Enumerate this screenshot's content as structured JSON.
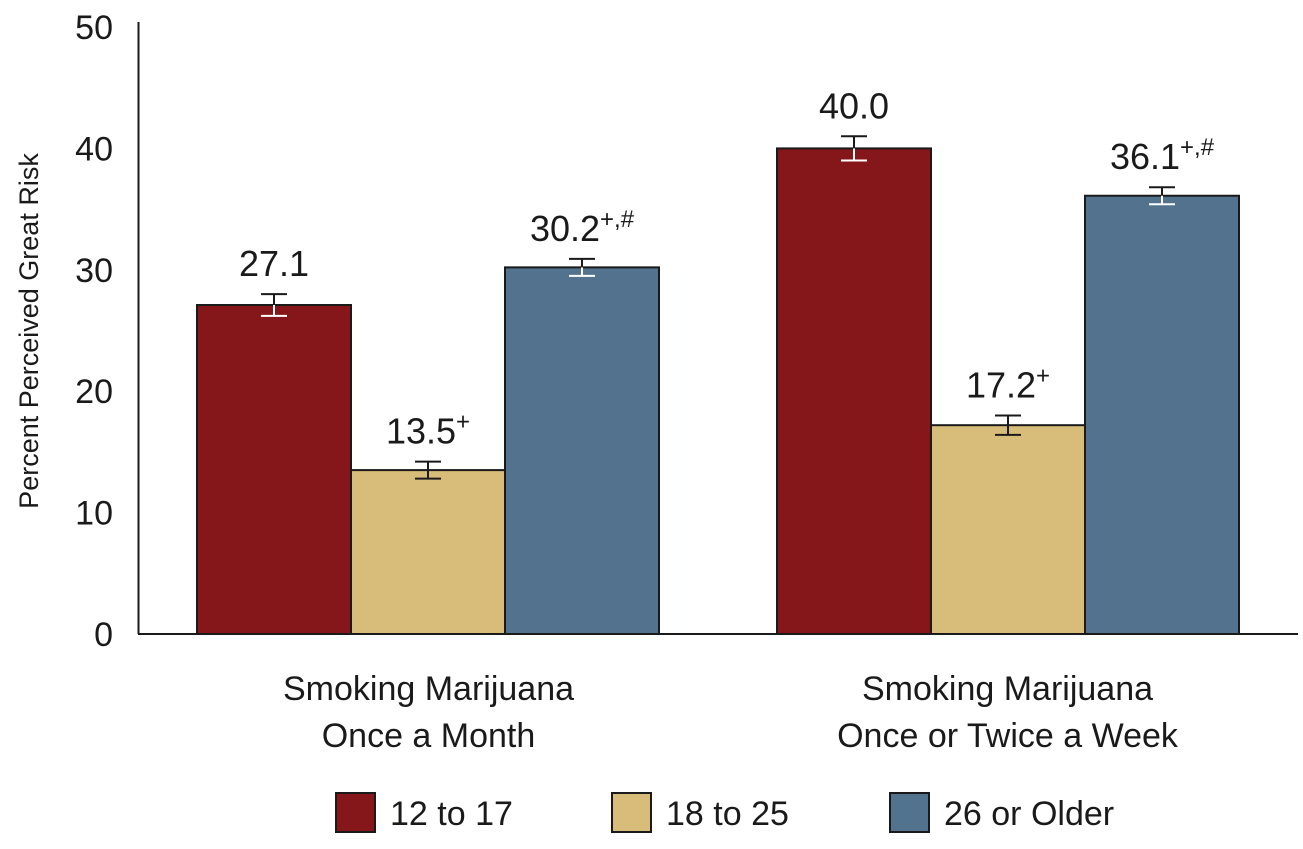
{
  "chart_data": {
    "type": "bar",
    "title": "",
    "xlabel": "",
    "ylabel": "Percent Perceived Great Risk",
    "ylim": [
      0,
      50
    ],
    "yticks": [
      0,
      10,
      20,
      30,
      40,
      50
    ],
    "grid": false,
    "legend_position": "bottom-center",
    "categories": [
      [
        "Smoking Marijuana",
        "Once a Month"
      ],
      [
        "Smoking Marijuana",
        "Once or Twice a Week"
      ]
    ],
    "series": [
      {
        "name": "12 to 17",
        "color": "#85171a",
        "values": [
          27.1,
          40.0
        ],
        "errors": [
          0.9,
          1.0
        ],
        "labels": [
          "27.1",
          "40.0"
        ],
        "superscripts": [
          "",
          ""
        ]
      },
      {
        "name": "18 to 25",
        "color": "#d8bd7a",
        "values": [
          13.5,
          17.2
        ],
        "errors": [
          0.7,
          0.8
        ],
        "labels": [
          "13.5",
          "17.2"
        ],
        "superscripts": [
          "+",
          "+"
        ]
      },
      {
        "name": "26 or Older",
        "color": "#52728e",
        "values": [
          30.2,
          36.1
        ],
        "errors": [
          0.7,
          0.7
        ],
        "labels": [
          "30.2",
          "36.1"
        ],
        "superscripts": [
          "+,#",
          "+,#"
        ]
      }
    ]
  }
}
